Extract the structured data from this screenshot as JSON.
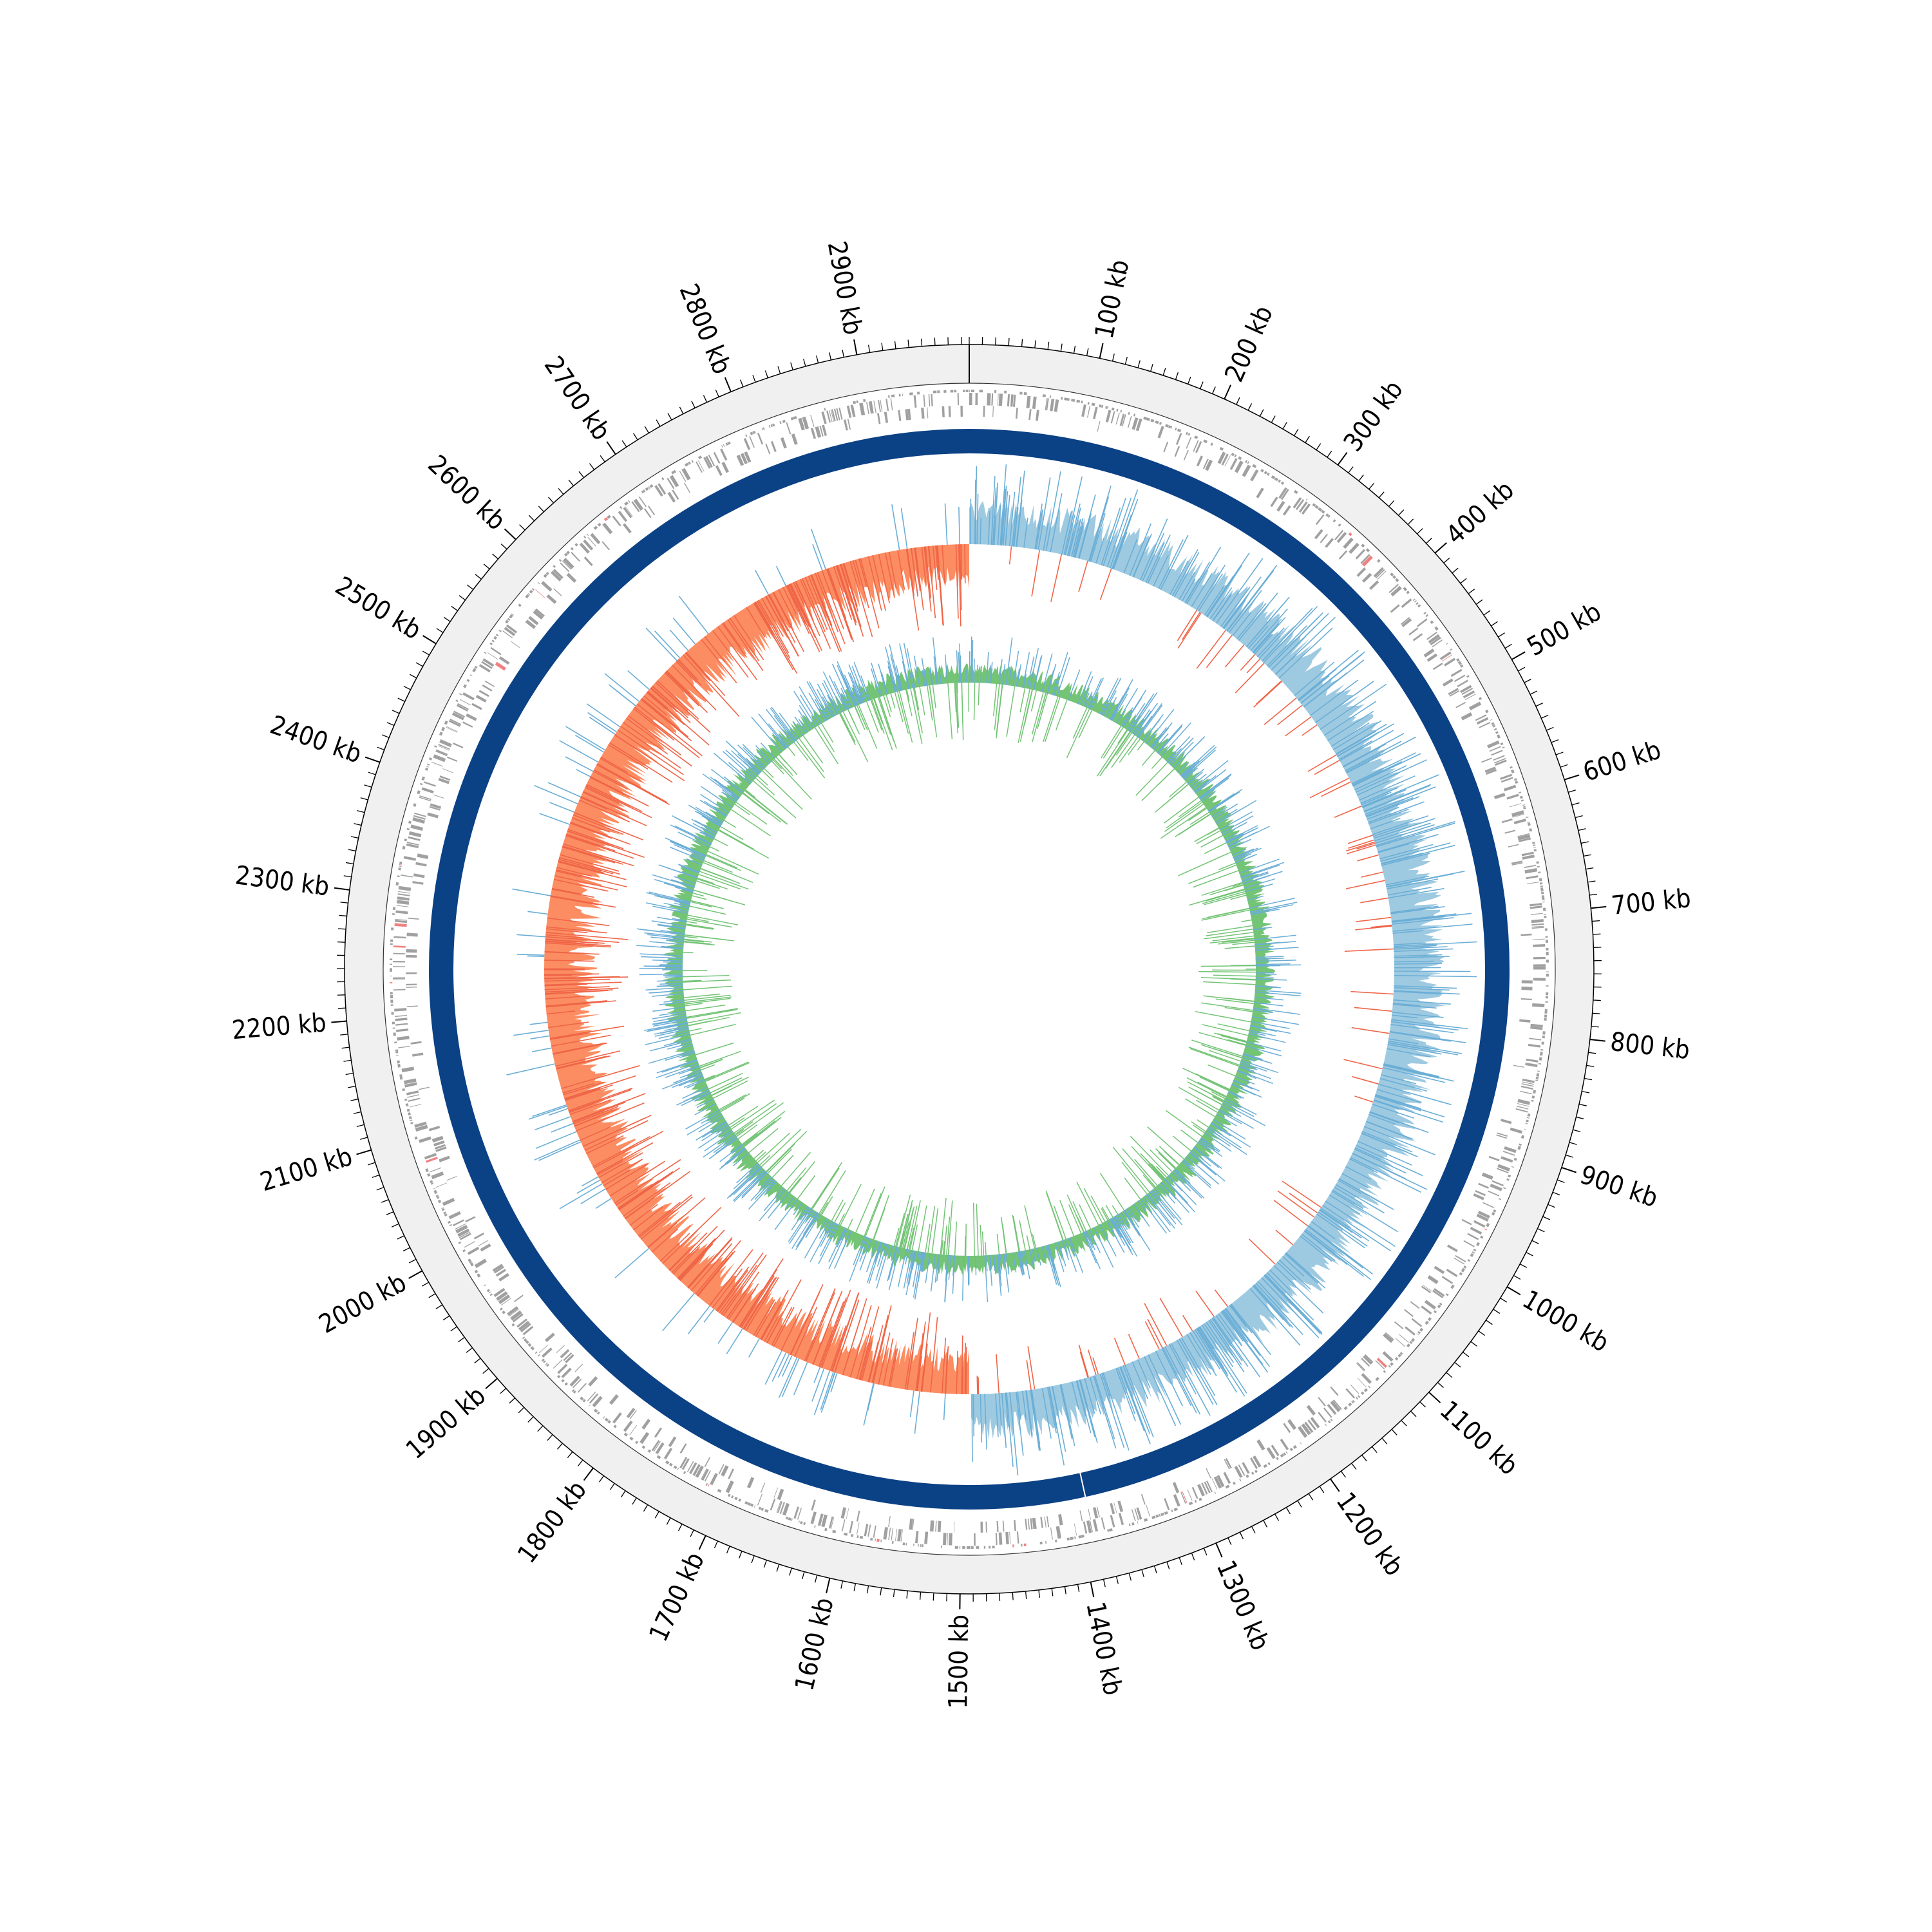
{
  "chart_data": {
    "type": "circular-genome",
    "genome_length_kb": 2986,
    "tick_labels": [
      "100 kb",
      "200 kb",
      "300 kb",
      "400 kb",
      "500 kb",
      "600 kb",
      "700 kb",
      "800 kb",
      "900 kb",
      "1000 kb",
      "1100 kb",
      "1200 kb",
      "1300 kb",
      "1400 kb",
      "1500 kb",
      "1600 kb",
      "1700 kb",
      "1800 kb",
      "1900 kb",
      "2000 kb",
      "2100 kb",
      "2200 kb",
      "2300 kb",
      "2400 kb",
      "2500 kb",
      "2600 kb",
      "2700 kb",
      "2800 kb",
      "2900 kb"
    ],
    "tick_positions_kb": [
      100,
      200,
      300,
      400,
      500,
      600,
      700,
      800,
      900,
      1000,
      1100,
      1200,
      1300,
      1400,
      1500,
      1600,
      1700,
      1800,
      1900,
      2000,
      2100,
      2200,
      2300,
      2400,
      2500,
      2600,
      2700,
      2800,
      2900
    ],
    "minor_tick_step_kb": 10,
    "tracks": [
      {
        "kind": "outer-band",
        "color": "#f0f0f0"
      },
      {
        "kind": "features",
        "color": "#a0a0a0",
        "highlight_color": "#f08080"
      },
      {
        "kind": "solid-ring",
        "color": "#0b4185",
        "gap_position_kb": 1390
      },
      {
        "kind": "gc-skew",
        "positive_color": "#9ecae1",
        "negative_color": "#fc8d62",
        "spike_positive_color": "#6baed6",
        "spike_negative_color": "#ef6548",
        "switch_positions_kb": [
          0,
          1493
        ]
      },
      {
        "kind": "gc-content",
        "fill_color": "#74c476",
        "spike_color": "#6baed6"
      }
    ]
  }
}
